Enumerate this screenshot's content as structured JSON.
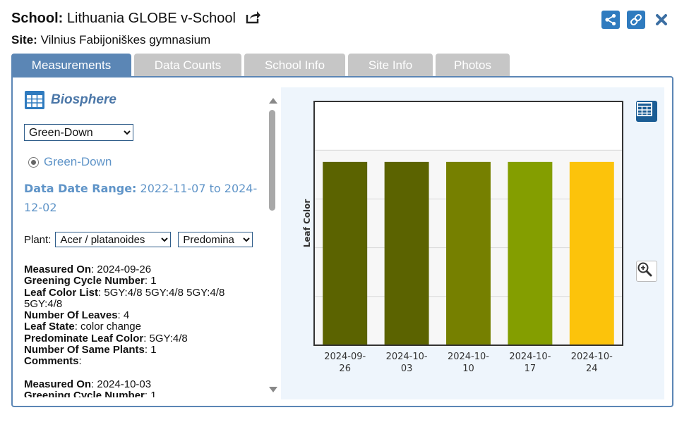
{
  "header": {
    "school_label": "School:",
    "school_name": "Lithuania GLOBE v-School",
    "site_label": "Site:",
    "site_name": "Vilnius Fabijoniškes gymnasium",
    "icons": [
      "external-link-icon",
      "share-icon",
      "link-icon",
      "close-icon"
    ]
  },
  "tabs": [
    {
      "label": "Measurements",
      "active": true
    },
    {
      "label": "Data Counts",
      "active": false
    },
    {
      "label": "School Info",
      "active": false
    },
    {
      "label": "Site Info",
      "active": false
    },
    {
      "label": "Photos",
      "active": false
    }
  ],
  "protocol": {
    "title": "Biosphere",
    "select_value": "Green-Down",
    "radio_label": "Green-Down",
    "range_label": "Data Date Range:",
    "range_value": "2022-11-07 to 2024-12-02",
    "plant_label": "Plant:",
    "plant_value": "Acer / platanoides",
    "leaf_select_value": "Predomina"
  },
  "records": [
    {
      "measured_on_label": "Measured On",
      "measured_on": "2024-09-26",
      "cycle_label": "Greening Cycle Number",
      "cycle": "1",
      "color_list_label": "Leaf Color List",
      "color_list": "5GY:4/8 5GY:4/8 5GY:4/8 5GY:4/8",
      "num_leaves_label": "Number Of Leaves",
      "num_leaves": "4",
      "leaf_state_label": "Leaf State",
      "leaf_state": "color change",
      "predominate_label": "Predominate Leaf Color",
      "predominate": "5GY:4/8",
      "same_plants_label": "Number Of Same Plants",
      "same_plants": "1",
      "comments_label": "Comments",
      "comments": ""
    },
    {
      "measured_on_label": "Measured On",
      "measured_on": "2024-10-03",
      "cycle_label": "Greening Cycle Number",
      "cycle": "1"
    }
  ],
  "chart_data": {
    "type": "bar",
    "ylabel": "Leaf Color",
    "xlabel": "",
    "categories": [
      "2024-09-26",
      "2024-10-03",
      "2024-10-10",
      "2024-10-17",
      "2024-10-24"
    ],
    "values": [
      1,
      1,
      1,
      1,
      1
    ],
    "ylim": [
      0,
      1.33
    ],
    "colors": [
      "#5b6300",
      "#5b6300",
      "#768000",
      "#849e00",
      "#fcc30b"
    ],
    "grid": true
  },
  "colors": {
    "accent": "#5b86b5",
    "button_blue": "#2f7bbf",
    "tab_inactive": "#c6c6c6",
    "link_blue": "#5f94c8",
    "chart_bg": "#eef5fc"
  }
}
